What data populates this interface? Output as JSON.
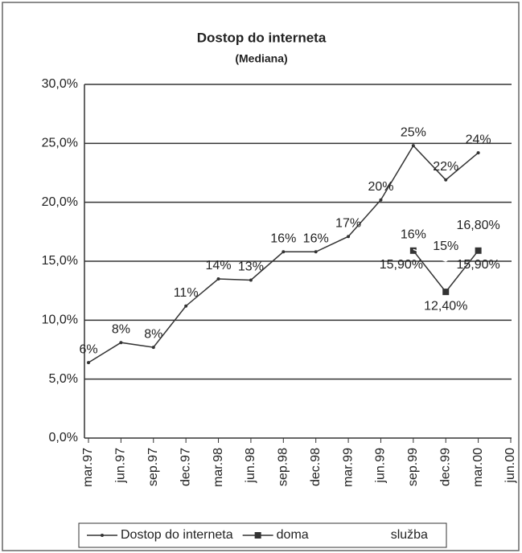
{
  "chart_data": {
    "type": "line",
    "title": "Dostop do interneta",
    "subtitle": "(Mediana)",
    "categories": [
      "mar.97",
      "jun.97",
      "sep.97",
      "dec.97",
      "mar.98",
      "jun.98",
      "sep.98",
      "dec.98",
      "mar.99",
      "jun.99",
      "sep.99",
      "dec.99",
      "mar.00",
      "jun.00"
    ],
    "series": [
      {
        "name": "Dostop do interneta",
        "color": "#333333",
        "marker": "dot",
        "values": [
          6.4,
          8.1,
          7.7,
          11.2,
          13.5,
          13.4,
          15.8,
          15.8,
          17.1,
          20.2,
          24.8,
          21.9,
          24.2,
          null
        ],
        "value_labels": [
          "6%",
          "8%",
          "8%",
          "11%",
          "14%",
          "13%",
          "16%",
          "16%",
          "17%",
          "20%",
          "25%",
          "22%",
          "24%",
          null
        ]
      },
      {
        "name": "doma",
        "color": "#333333",
        "marker": "square",
        "values": [
          null,
          null,
          null,
          null,
          null,
          null,
          null,
          null,
          null,
          null,
          15.9,
          12.4,
          15.9,
          null
        ],
        "value_labels": [
          null,
          null,
          null,
          null,
          null,
          null,
          null,
          null,
          null,
          null,
          "15,90%",
          "12,40%",
          "15,90%",
          null
        ]
      },
      {
        "name": "služba",
        "color": "#ffffff",
        "marker": "none",
        "values": [
          null,
          null,
          null,
          null,
          null,
          null,
          null,
          null,
          null,
          null,
          16,
          15,
          16.8,
          null
        ],
        "value_labels": [
          null,
          null,
          null,
          null,
          null,
          null,
          null,
          null,
          null,
          null,
          "16%",
          "15%",
          "16,80%",
          null
        ]
      }
    ],
    "ylim": [
      0,
      30
    ],
    "yticks": [
      {
        "value": 0,
        "label": "0,0%"
      },
      {
        "value": 5,
        "label": "5,0%"
      },
      {
        "value": 10,
        "label": "10,0%"
      },
      {
        "value": 15,
        "label": "15,0%"
      },
      {
        "value": 20,
        "label": "20,0%"
      },
      {
        "value": 25,
        "label": "25,0%"
      },
      {
        "value": 30,
        "label": "30,0%"
      }
    ],
    "grid": true,
    "legend": "bottom"
  }
}
